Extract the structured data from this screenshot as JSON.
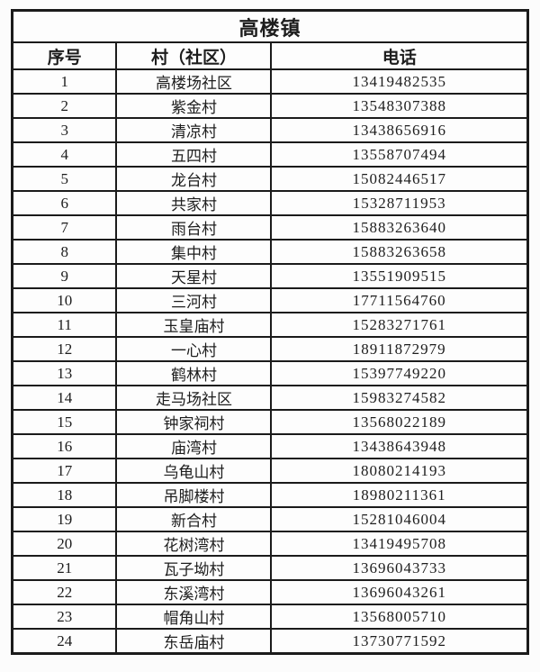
{
  "table": {
    "title": "高楼镇",
    "columns": [
      "序号",
      "村（社区）",
      "电话"
    ],
    "rows": [
      {
        "seq": "1",
        "village": "高楼场社区",
        "phone": "13419482535"
      },
      {
        "seq": "2",
        "village": "紫金村",
        "phone": "13548307388"
      },
      {
        "seq": "3",
        "village": "清凉村",
        "phone": "13438656916"
      },
      {
        "seq": "4",
        "village": "五四村",
        "phone": "13558707494"
      },
      {
        "seq": "5",
        "village": "龙台村",
        "phone": "15082446517"
      },
      {
        "seq": "6",
        "village": "共家村",
        "phone": "15328711953"
      },
      {
        "seq": "7",
        "village": "雨台村",
        "phone": "15883263640"
      },
      {
        "seq": "8",
        "village": "集中村",
        "phone": "15883263658"
      },
      {
        "seq": "9",
        "village": "天星村",
        "phone": "13551909515"
      },
      {
        "seq": "10",
        "village": "三河村",
        "phone": "17711564760"
      },
      {
        "seq": "11",
        "village": "玉皇庙村",
        "phone": "15283271761"
      },
      {
        "seq": "12",
        "village": "一心村",
        "phone": "18911872979"
      },
      {
        "seq": "13",
        "village": "鹤林村",
        "phone": "15397749220"
      },
      {
        "seq": "14",
        "village": "走马场社区",
        "phone": "15983274582"
      },
      {
        "seq": "15",
        "village": "钟家祠村",
        "phone": "13568022189"
      },
      {
        "seq": "16",
        "village": "庙湾村",
        "phone": "13438643948"
      },
      {
        "seq": "17",
        "village": "乌龟山村",
        "phone": "18080214193"
      },
      {
        "seq": "18",
        "village": "吊脚楼村",
        "phone": "18980211361"
      },
      {
        "seq": "19",
        "village": "新合村",
        "phone": "15281046004"
      },
      {
        "seq": "20",
        "village": "花树湾村",
        "phone": "13419495708"
      },
      {
        "seq": "21",
        "village": "瓦子坳村",
        "phone": "13696043733"
      },
      {
        "seq": "22",
        "village": "东溪湾村",
        "phone": "13696043261"
      },
      {
        "seq": "23",
        "village": "帽角山村",
        "phone": "13568005710"
      },
      {
        "seq": "24",
        "village": "东岳庙村",
        "phone": "13730771592"
      }
    ]
  }
}
